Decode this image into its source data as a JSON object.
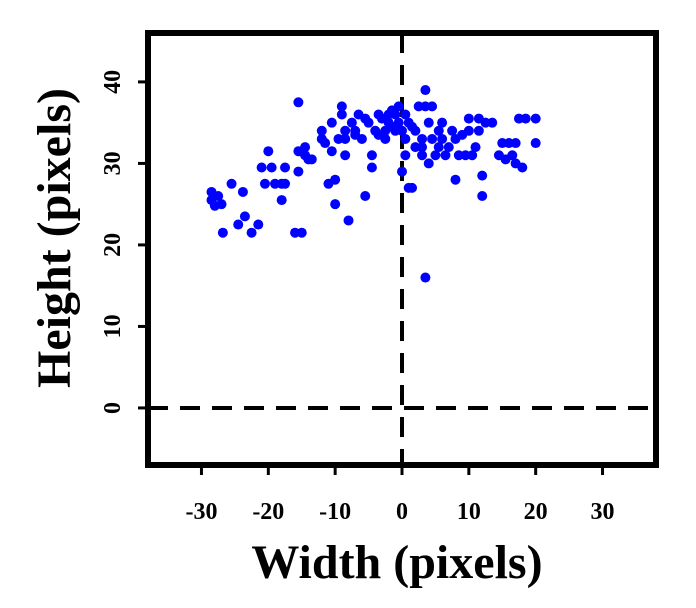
{
  "chart_data": {
    "type": "scatter",
    "title": "",
    "xlabel": "Width (pixels)",
    "ylabel": "Height (pixels)",
    "xlim": [
      -38,
      38
    ],
    "ylim": [
      -7,
      46
    ],
    "x_ticks": [
      -30,
      -20,
      -10,
      0,
      10,
      20,
      30
    ],
    "x_tick_labels": [
      "-30",
      "-20",
      "-10",
      "0",
      "10",
      "20",
      "30"
    ],
    "y_ticks": [
      0,
      10,
      20,
      30,
      40
    ],
    "y_tick_labels": [
      "0",
      "10",
      "20",
      "30",
      "40"
    ],
    "reference_lines": {
      "x": 0,
      "y": 0,
      "style": "dashed"
    },
    "grid": false,
    "point_color": "#0000ff",
    "series": [
      {
        "points": [
          [
            -28.5,
            26.5
          ],
          [
            -28.5,
            25.5
          ],
          [
            -28,
            24.8
          ],
          [
            -27.5,
            26
          ],
          [
            -27,
            25
          ],
          [
            -26.8,
            21.5
          ],
          [
            -25.5,
            27.5
          ],
          [
            -24.5,
            22.5
          ],
          [
            -23.8,
            26.5
          ],
          [
            -23.5,
            23.5
          ],
          [
            -22.5,
            21.5
          ],
          [
            -21.5,
            22.5
          ],
          [
            -21,
            29.5
          ],
          [
            -20.5,
            27.5
          ],
          [
            -20,
            31.5
          ],
          [
            -19.5,
            29.5
          ],
          [
            -19,
            27.5
          ],
          [
            -18,
            27.5
          ],
          [
            -18,
            25.5
          ],
          [
            -17.5,
            29.5
          ],
          [
            -17.5,
            27.5
          ],
          [
            -16,
            21.5
          ],
          [
            -15.5,
            37.5
          ],
          [
            -15.5,
            31.5
          ],
          [
            -15.5,
            29
          ],
          [
            -15,
            21.5
          ],
          [
            -14.5,
            32
          ],
          [
            -14.5,
            31
          ],
          [
            -14,
            30.5
          ],
          [
            -13.5,
            30.5
          ],
          [
            -12,
            34
          ],
          [
            -12,
            33
          ],
          [
            -11.5,
            32.5
          ],
          [
            -11,
            27.5
          ],
          [
            -10.5,
            35
          ],
          [
            -10.5,
            31.5
          ],
          [
            -10,
            28
          ],
          [
            -10,
            25
          ],
          [
            -9.5,
            33
          ],
          [
            -9,
            37
          ],
          [
            -9,
            36
          ],
          [
            -8.5,
            34
          ],
          [
            -8.5,
            33
          ],
          [
            -8.5,
            31
          ],
          [
            -8,
            23
          ],
          [
            -7.5,
            35
          ],
          [
            -7,
            34
          ],
          [
            -7,
            33.5
          ],
          [
            -6.5,
            36
          ],
          [
            -6,
            33
          ],
          [
            -5.5,
            26
          ],
          [
            -5.5,
            35.5
          ],
          [
            -5,
            35
          ],
          [
            -4.5,
            31
          ],
          [
            -4.5,
            29.5
          ],
          [
            -4,
            34
          ],
          [
            -3.5,
            36
          ],
          [
            -3.5,
            33.5
          ],
          [
            -3,
            35.5
          ],
          [
            -2.5,
            34
          ],
          [
            -2.5,
            33
          ],
          [
            -2,
            36
          ],
          [
            -2,
            35
          ],
          [
            -1.5,
            34.5
          ],
          [
            -1.5,
            36.5
          ],
          [
            -1,
            36
          ],
          [
            -1,
            34
          ],
          [
            -0.5,
            37
          ],
          [
            -0.5,
            35
          ],
          [
            0,
            29
          ],
          [
            0,
            34
          ],
          [
            0.5,
            33
          ],
          [
            0.5,
            31
          ],
          [
            0.5,
            36
          ],
          [
            1,
            27
          ],
          [
            1,
            35
          ],
          [
            1.5,
            34.5
          ],
          [
            1.5,
            27
          ],
          [
            2,
            34
          ],
          [
            2,
            32
          ],
          [
            2.5,
            37
          ],
          [
            3,
            33
          ],
          [
            3,
            32
          ],
          [
            3,
            31
          ],
          [
            3.5,
            39
          ],
          [
            3.5,
            37
          ],
          [
            3.5,
            16
          ],
          [
            4,
            35
          ],
          [
            4,
            30
          ],
          [
            4.5,
            33
          ],
          [
            4.5,
            37
          ],
          [
            5,
            31
          ],
          [
            5.5,
            34
          ],
          [
            5.5,
            32
          ],
          [
            6,
            35
          ],
          [
            6,
            33
          ],
          [
            6.5,
            31
          ],
          [
            7,
            32
          ],
          [
            7.5,
            34
          ],
          [
            8,
            28
          ],
          [
            8,
            33
          ],
          [
            8.5,
            31
          ],
          [
            9,
            33.5
          ],
          [
            9.5,
            31
          ],
          [
            10,
            35.5
          ],
          [
            10,
            34
          ],
          [
            10.5,
            31
          ],
          [
            11,
            32
          ],
          [
            11.5,
            35.5
          ],
          [
            11.5,
            34
          ],
          [
            12,
            28.5
          ],
          [
            12,
            26
          ],
          [
            12.5,
            35
          ],
          [
            13.5,
            35
          ],
          [
            14.5,
            31
          ],
          [
            15,
            32.5
          ],
          [
            15.5,
            30.5
          ],
          [
            16,
            32.5
          ],
          [
            16.5,
            31
          ],
          [
            17,
            32.5
          ],
          [
            17,
            30
          ],
          [
            17.5,
            35.5
          ],
          [
            18,
            29.5
          ],
          [
            18.5,
            35.5
          ],
          [
            20,
            32.5
          ],
          [
            20,
            35.5
          ]
        ]
      }
    ]
  }
}
